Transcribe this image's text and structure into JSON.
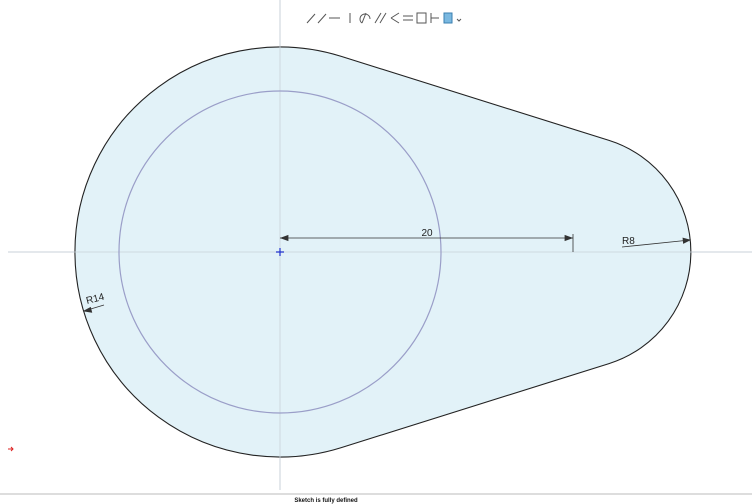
{
  "dimensions": {
    "distance": "20",
    "small_radius": "R8",
    "large_radius": "R14"
  },
  "status": "Sketch is fully defined"
}
